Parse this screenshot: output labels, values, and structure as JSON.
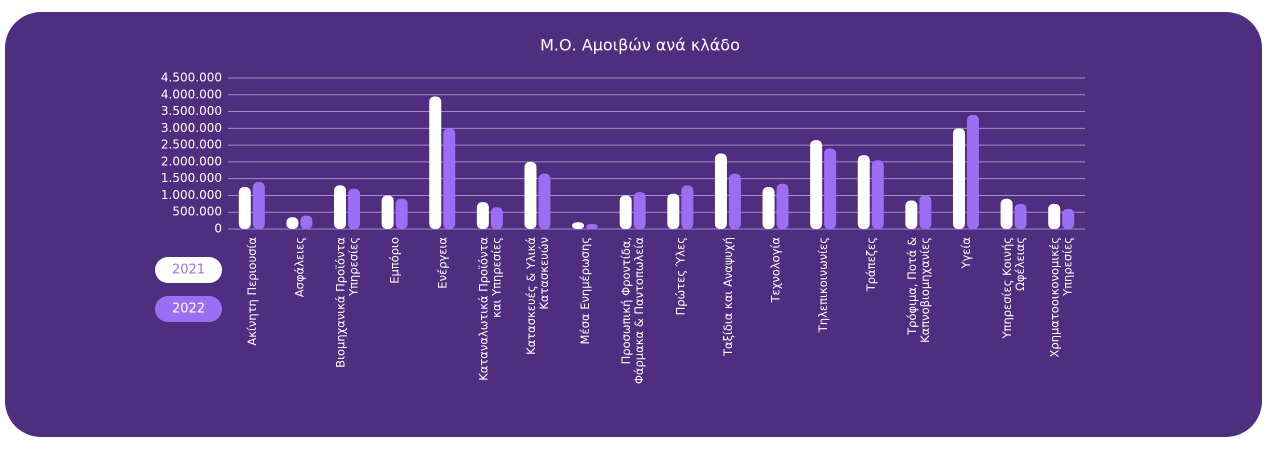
{
  "chart_data": {
    "type": "bar",
    "title": "Μ.Ο. Αμοιβών ανά κλάδο",
    "categories": [
      "Ακίνητη Περιουσία",
      "Ασφάλειες",
      "Βιομηχανικά Προϊόντα\nΥπηρεσίες",
      "Εμπόριο",
      "Ενέργεια",
      "Καταναλωτικά Προϊόντα\nκαι Υπηρεσίες",
      "Κατασκευές & Υλικά\nΚατασκευών",
      "Μέσα Ενημέρωσης",
      "Προσωπική Φροντίδα,\nΦάρμακα & Παντοπωλεία",
      "Πρώτες Ύλες",
      "Ταξίδια και Αναψυχή",
      "Τεχνολογία",
      "Τηλεπικοινωνίες",
      "Τράπεζες",
      "Τρόφιμα, Ποτά &\nΚαπνοβιομηχανίες",
      "Υγεία",
      "Υπηρεσίες Κοινής\nΩφέλειας",
      "Χρηματοοικονομικές\nΥπηρεσίες"
    ],
    "series": [
      {
        "name": "2021",
        "color": "#ffffff",
        "values": [
          1250000,
          350000,
          1300000,
          1000000,
          3950000,
          800000,
          2000000,
          200000,
          1000000,
          1050000,
          2250000,
          1250000,
          2650000,
          2200000,
          850000,
          3000000,
          900000,
          750000
        ]
      },
      {
        "name": "2022",
        "color": "#9b6ef3",
        "values": [
          1400000,
          400000,
          1200000,
          900000,
          3000000,
          650000,
          1650000,
          150000,
          1100000,
          1300000,
          1650000,
          1350000,
          2400000,
          2050000,
          1000000,
          3400000,
          750000,
          600000
        ]
      }
    ],
    "ylim": [
      0,
      4500000
    ],
    "yticks": [
      {
        "value": 0,
        "label": "0"
      },
      {
        "value": 500000,
        "label": "500.000"
      },
      {
        "value": 1000000,
        "label": "1.000.000"
      },
      {
        "value": 1500000,
        "label": "1.500.000"
      },
      {
        "value": 2000000,
        "label": "2.000.000"
      },
      {
        "value": 2500000,
        "label": "2.500.000"
      },
      {
        "value": 3000000,
        "label": "3.000.000"
      },
      {
        "value": 3500000,
        "label": "3.500.000"
      },
      {
        "value": 4000000,
        "label": "4.000.000"
      },
      {
        "value": 4500000,
        "label": "4.500.000"
      }
    ],
    "grid": true
  }
}
